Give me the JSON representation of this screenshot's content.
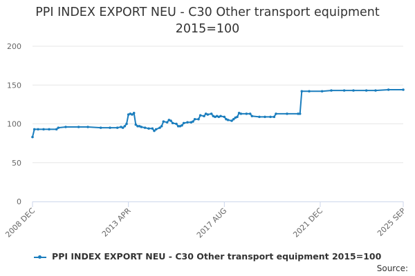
{
  "chart_data": {
    "type": "line",
    "title": "PPI INDEX EXPORT NEU - C30 Other transport equipment 2015=100",
    "title_lines": [
      "PPI INDEX EXPORT NEU - C30 Other transport equipment",
      "2015=100"
    ],
    "xlabel": "",
    "ylabel": "",
    "ylim": [
      0,
      200
    ],
    "yticks": [
      0,
      50,
      100,
      150,
      200
    ],
    "xlim": [
      "2008-12",
      "2025-09"
    ],
    "xtick_labels": [
      "2008 DEC",
      "2013 APR",
      "2017 AUG",
      "2021 DEC",
      "2025 SEP"
    ],
    "xtick_dates": [
      "2008-12",
      "2013-04",
      "2017-08",
      "2021-12",
      "2025-09"
    ],
    "grid": true,
    "legend_position": "bottom",
    "series": [
      {
        "name": "PPI INDEX EXPORT NEU - C30 Other transport equipment 2015=100",
        "color": "#1a7dbd",
        "points": [
          [
            "2008-12",
            83
          ],
          [
            "2009-01",
            93
          ],
          [
            "2009-03",
            93
          ],
          [
            "2009-06",
            93
          ],
          [
            "2009-09",
            93
          ],
          [
            "2010-01",
            93
          ],
          [
            "2010-02",
            95
          ],
          [
            "2010-06",
            96
          ],
          [
            "2011-01",
            96
          ],
          [
            "2011-06",
            96
          ],
          [
            "2012-01",
            95
          ],
          [
            "2012-06",
            95
          ],
          [
            "2012-10",
            95
          ],
          [
            "2012-12",
            96
          ],
          [
            "2013-01",
            95
          ],
          [
            "2013-02",
            97
          ],
          [
            "2013-03",
            100
          ],
          [
            "2013-04",
            112
          ],
          [
            "2013-05",
            113
          ],
          [
            "2013-06",
            112
          ],
          [
            "2013-07",
            114
          ],
          [
            "2013-08",
            99
          ],
          [
            "2013-09",
            97
          ],
          [
            "2013-10",
            97
          ],
          [
            "2013-11",
            96
          ],
          [
            "2014-01",
            95
          ],
          [
            "2014-03",
            94
          ],
          [
            "2014-05",
            94
          ],
          [
            "2014-06",
            91
          ],
          [
            "2014-07",
            93
          ],
          [
            "2014-09",
            95
          ],
          [
            "2014-10",
            97
          ],
          [
            "2014-11",
            103
          ],
          [
            "2015-01",
            102
          ],
          [
            "2015-02",
            105
          ],
          [
            "2015-03",
            104
          ],
          [
            "2015-04",
            101
          ],
          [
            "2015-06",
            100
          ],
          [
            "2015-07",
            97
          ],
          [
            "2015-08",
            97
          ],
          [
            "2015-09",
            98
          ],
          [
            "2015-10",
            101
          ],
          [
            "2015-12",
            102
          ],
          [
            "2016-02",
            102
          ],
          [
            "2016-03",
            103
          ],
          [
            "2016-04",
            106
          ],
          [
            "2016-06",
            106
          ],
          [
            "2016-07",
            111
          ],
          [
            "2016-09",
            110
          ],
          [
            "2016-10",
            113
          ],
          [
            "2016-11",
            112
          ],
          [
            "2017-01",
            113
          ],
          [
            "2017-02",
            110
          ],
          [
            "2017-03",
            109
          ],
          [
            "2017-04",
            110
          ],
          [
            "2017-05",
            109
          ],
          [
            "2017-06",
            110
          ],
          [
            "2017-08",
            109
          ],
          [
            "2017-09",
            106
          ],
          [
            "2017-10",
            105
          ],
          [
            "2017-12",
            104
          ],
          [
            "2018-01",
            106
          ],
          [
            "2018-02",
            108
          ],
          [
            "2018-03",
            109
          ],
          [
            "2018-04",
            114
          ],
          [
            "2018-05",
            113
          ],
          [
            "2018-08",
            113
          ],
          [
            "2018-10",
            113
          ],
          [
            "2018-11",
            110
          ],
          [
            "2019-03",
            109
          ],
          [
            "2019-06",
            109
          ],
          [
            "2019-09",
            109
          ],
          [
            "2019-11",
            109
          ],
          [
            "2019-12",
            113
          ],
          [
            "2020-06",
            113
          ],
          [
            "2020-12",
            113
          ],
          [
            "2021-01",
            113
          ],
          [
            "2021-02",
            142
          ],
          [
            "2021-06",
            142
          ],
          [
            "2022-01",
            142
          ],
          [
            "2022-06",
            143
          ],
          [
            "2023-01",
            143
          ],
          [
            "2023-06",
            143
          ],
          [
            "2024-01",
            143
          ],
          [
            "2024-06",
            143
          ],
          [
            "2025-01",
            144
          ],
          [
            "2025-09",
            144
          ]
        ]
      }
    ]
  },
  "source_label": "Source:"
}
